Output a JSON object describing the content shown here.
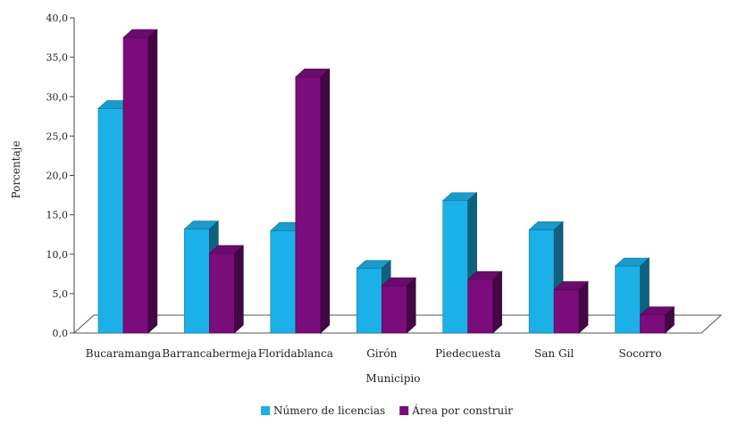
{
  "chart_data": {
    "type": "bar",
    "title": "",
    "xlabel": "Municipio",
    "ylabel": "Porcentaje",
    "ylim": [
      0,
      40
    ],
    "yticks": [
      0,
      5,
      10,
      15,
      20,
      25,
      30,
      35,
      40
    ],
    "ytick_labels": [
      "0,0",
      "5,0",
      "10,0",
      "15,0",
      "20,0",
      "25,0",
      "30,0",
      "35,0",
      "40,0"
    ],
    "categories": [
      "Bucaramanga",
      "Barrancabermeja",
      "Floridablanca",
      "Girón",
      "Piedecuesta",
      "San Gil",
      "Socorro"
    ],
    "series": [
      {
        "name": "Número de licencias",
        "values": [
          28.5,
          13.2,
          13.0,
          8.2,
          16.8,
          13.1,
          8.5
        ],
        "color": "#1cb0e8"
      },
      {
        "name": "Área por construir",
        "values": [
          37.5,
          10.1,
          32.5,
          6.0,
          6.8,
          5.5,
          2.3
        ],
        "color": "#7a0c7c"
      }
    ],
    "legend_position": "bottom-center",
    "grid": false,
    "style": "3d"
  }
}
